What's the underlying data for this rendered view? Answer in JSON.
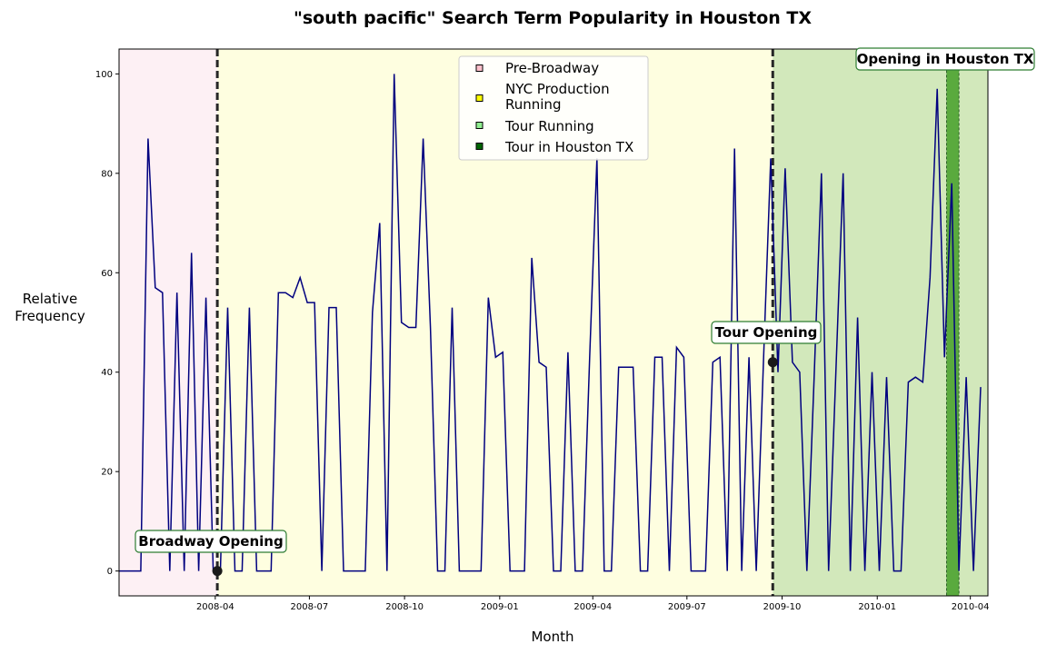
{
  "chart_data": {
    "type": "line",
    "title": "\"south pacific\" Search Term Popularity in Houston TX",
    "xlabel": "Month",
    "ylabel": "Relative\nFrequency",
    "x_start": "2007-12-30",
    "x_step_days": 7,
    "xlim": [
      "2007-12-30",
      "2010-04-18"
    ],
    "ylim": [
      -5,
      105
    ],
    "yticks": [
      0,
      20,
      40,
      60,
      80,
      100
    ],
    "xticks": [
      "2008-04",
      "2008-07",
      "2008-10",
      "2009-01",
      "2009-04",
      "2009-07",
      "2009-10",
      "2010-01",
      "2010-04"
    ],
    "grid": false,
    "line_color": "#00007f",
    "values": [
      0,
      0,
      0,
      0,
      87,
      57,
      56,
      0,
      56,
      0,
      64,
      0,
      55,
      0,
      0,
      53,
      0,
      0,
      53,
      0,
      0,
      0,
      56,
      56,
      55,
      59,
      54,
      54,
      0,
      53,
      53,
      0,
      0,
      0,
      0,
      52,
      70,
      0,
      100,
      50,
      49,
      49,
      87,
      49,
      0,
      0,
      53,
      0,
      0,
      0,
      0,
      55,
      43,
      44,
      0,
      0,
      0,
      63,
      42,
      41,
      0,
      0,
      44,
      0,
      0,
      43,
      83,
      0,
      0,
      41,
      41,
      41,
      0,
      0,
      43,
      43,
      0,
      45,
      43,
      0,
      0,
      0,
      42,
      43,
      0,
      85,
      0,
      43,
      0,
      42,
      83,
      40,
      81,
      42,
      40,
      0,
      39,
      80,
      0,
      40,
      80,
      0,
      51,
      0,
      40,
      0,
      39,
      0,
      0,
      38,
      39,
      38,
      59,
      97,
      43,
      78,
      0,
      39,
      0,
      37
    ],
    "regions": [
      {
        "name": "Pre-Broadway",
        "from": "2007-12-30",
        "to": "2008-04-03",
        "color": "#fdf0f4"
      },
      {
        "name": "NYC Production Running",
        "from": "2008-04-03",
        "to": "2009-09-22",
        "color": "#fefee0"
      },
      {
        "name": "Tour Running",
        "from": "2009-09-22",
        "to": "2010-04-18",
        "color": "#d2e8bb"
      },
      {
        "name": "Tour in Houston TX",
        "from": "2010-03-09",
        "to": "2010-03-21",
        "color": "#5aaa3e"
      }
    ],
    "legend": [
      {
        "label": "Pre-Broadway",
        "color": "#ffc0cb"
      },
      {
        "label": "NYC Production Running",
        "color": "#ffff00"
      },
      {
        "label": "Tour Running",
        "color": "#90ee90"
      },
      {
        "label": "Tour in Houston TX",
        "color": "#006400"
      }
    ],
    "legend_loc": "upper center",
    "annotations": [
      {
        "label": "Broadway Opening",
        "date": "2008-04-03",
        "y": 0
      },
      {
        "label": "Tour Opening",
        "date": "2009-09-22",
        "y": 42
      },
      {
        "label": "Opening in Houston TX",
        "date": "2010-03-09",
        "y": 97
      }
    ]
  }
}
